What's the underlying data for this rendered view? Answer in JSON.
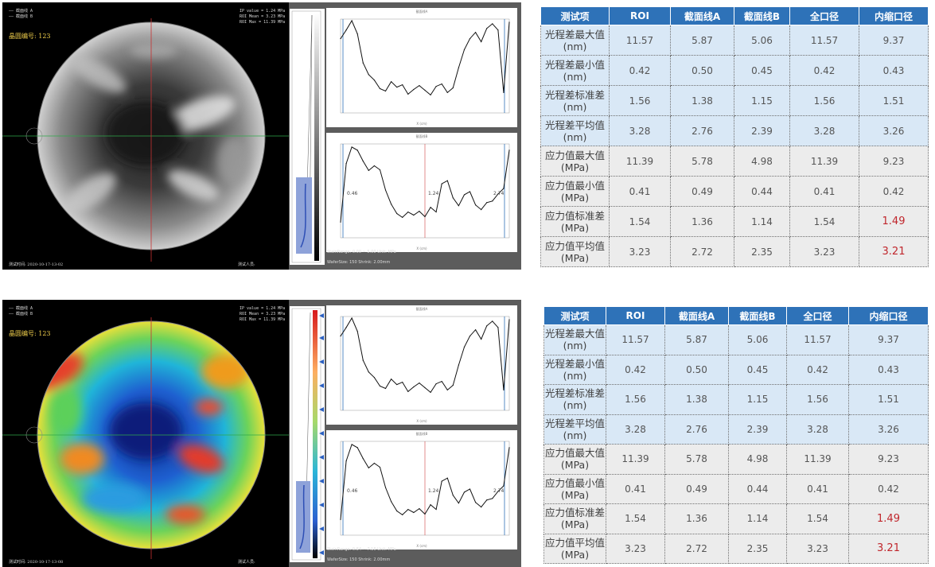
{
  "panels": [
    {
      "legend_lines": [
        "—— 截面线 A",
        "—— 截面线 B"
      ],
      "stats_lines": [
        "IP value = 1.24 MPa",
        "ROI Mean = 3.23 MPa",
        "ROI Max = 11.39 MPa"
      ],
      "sample_label": "晶圆编号: 123",
      "test_time": "测试时间: 2020-10-17-13-02",
      "tester": "测试人员:",
      "chart1_title": "截面线A",
      "chart2_title": "截面线B",
      "xlabel": "X (cm)",
      "markers": [
        "0.46",
        "1.24",
        "2.74"
      ],
      "stain_range": "StainRange: 0.00 ~ 5.00 Unit: MPa",
      "wafer_size": "WaferSize: 150 Shrink: 2.00mm"
    },
    {
      "legend_lines": [
        "—— 截面线 A",
        "—— 截面线 B"
      ],
      "stats_lines": [
        "IP value = 1.24 MPa",
        "ROI Mean = 3.23 MPa",
        "ROI Max = 11.39 MPa"
      ],
      "sample_label": "晶圆编号: 123",
      "test_time": "测试时间: 2020-10-17-13-08",
      "tester": "测试人员:",
      "chart1_title": "截面线A",
      "chart2_title": "截面线B",
      "xlabel": "X (cm)",
      "markers": [
        "0.46",
        "1.24",
        "2.74"
      ],
      "stain_range": "StainRange: 0.84 ~ 7.16 Unit: MPa",
      "wafer_size": "WaferSize: 150 Shrink: 2.00mm"
    }
  ],
  "table_header": [
    "测试项",
    "ROI",
    "截面线A",
    "截面线B",
    "全口径",
    "内缩口径"
  ],
  "table_rows": [
    {
      "label1": "光程差最大值",
      "label2": "(nm)",
      "values": [
        "11.57",
        "5.87",
        "5.06",
        "11.57",
        "9.37"
      ]
    },
    {
      "label1": "光程差最小值",
      "label2": "(nm)",
      "values": [
        "0.42",
        "0.50",
        "0.45",
        "0.42",
        "0.43"
      ]
    },
    {
      "label1": "光程差标准差",
      "label2": "(nm)",
      "values": [
        "1.56",
        "1.38",
        "1.15",
        "1.56",
        "1.51"
      ]
    },
    {
      "label1": "光程差平均值",
      "label2": "(nm)",
      "values": [
        "3.28",
        "2.76",
        "2.39",
        "3.28",
        "3.26"
      ]
    },
    {
      "label1": "应力值最大值",
      "label2": "(MPa)",
      "values": [
        "11.39",
        "5.78",
        "4.98",
        "11.39",
        "9.23"
      ]
    },
    {
      "label1": "应力值最小值",
      "label2": "(MPa)",
      "values": [
        "0.41",
        "0.49",
        "0.44",
        "0.41",
        "0.42"
      ]
    },
    {
      "label1": "应力值标准差",
      "label2": "(MPa)",
      "values": [
        "1.54",
        "1.36",
        "1.14",
        "1.54",
        "1.49"
      ]
    },
    {
      "label1": "应力值平均值",
      "label2": "(MPa)",
      "values": [
        "3.23",
        "2.72",
        "2.35",
        "3.23",
        "3.21"
      ]
    }
  ],
  "highlight_color": "#c0262c",
  "header_color": "#2e72b8",
  "chart_data": [
    {
      "type": "line",
      "x": [
        0,
        5,
        10,
        15,
        20,
        25,
        30,
        35,
        40,
        45,
        50,
        55,
        60,
        65,
        70,
        75,
        80,
        85,
        90,
        95,
        100,
        105,
        110,
        115,
        120,
        125,
        130,
        135,
        140,
        145,
        150
      ],
      "values": [
        9.5,
        10.6,
        11.8,
        10.1,
        6.4,
        4.9,
        4.2,
        3.1,
        2.8,
        4.0,
        3.3,
        3.6,
        2.4,
        3.0,
        3.5,
        2.9,
        2.3,
        3.4,
        3.7,
        2.6,
        3.2,
        5.8,
        8.1,
        9.5,
        10.3,
        9.1,
        10.8,
        11.4,
        10.6,
        2.6,
        11.6
      ],
      "ylim": [
        0,
        12
      ],
      "xlim": [
        0,
        150
      ]
    },
    {
      "type": "line",
      "x": [
        0,
        5,
        10,
        15,
        20,
        25,
        30,
        35,
        40,
        45,
        50,
        55,
        60,
        65,
        70,
        75,
        80,
        85,
        90,
        95,
        100,
        105,
        110,
        115,
        120,
        125,
        130,
        135,
        140,
        145,
        150
      ],
      "values": [
        2.0,
        9.5,
        11.6,
        11.2,
        9.8,
        8.6,
        9.2,
        8.7,
        6.1,
        4.3,
        3.1,
        2.6,
        3.3,
        2.9,
        3.4,
        2.7,
        3.9,
        3.3,
        6.9,
        7.3,
        5.1,
        4.1,
        5.5,
        5.9,
        4.2,
        3.6,
        4.5,
        4.7,
        5.6,
        6.3,
        11.2
      ],
      "ylim": [
        0,
        12
      ],
      "xlim": [
        0,
        150
      ]
    }
  ]
}
